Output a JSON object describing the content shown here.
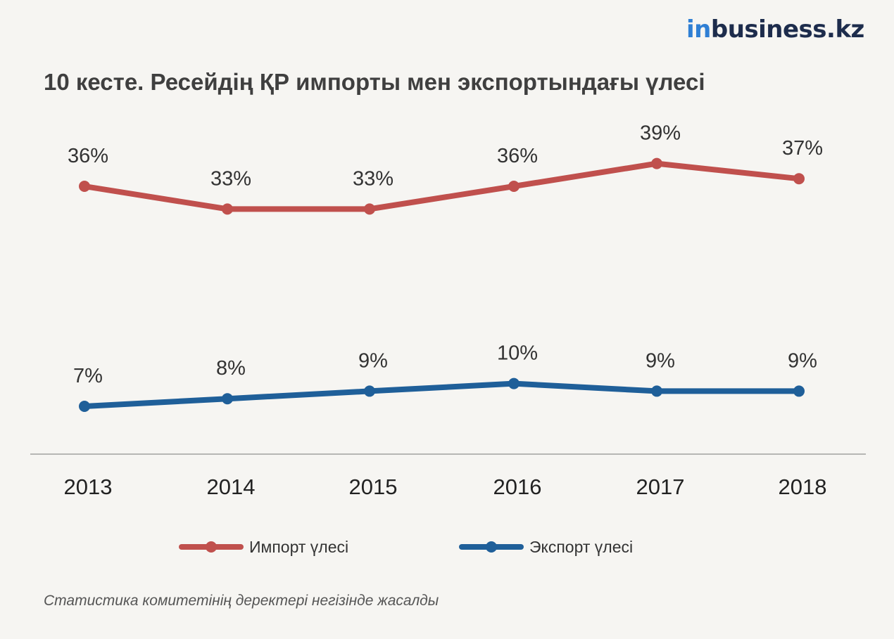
{
  "logo": {
    "prefix": "in",
    "rest": "business.kz"
  },
  "title": "10 кесте. Ресейдің ҚР импорты мен экспортындағы үлесі",
  "source": "Статистика комитетінің деректері негізінде жасалды",
  "chart_data": {
    "type": "line",
    "title": "10 кесте. Ресейдің ҚР импорты мен экспортындағы үлесі",
    "categories": [
      "2013",
      "2014",
      "2015",
      "2016",
      "2017",
      "2018"
    ],
    "value_format": "{v}%",
    "series": [
      {
        "name": "Импорт үлесі",
        "values": [
          36,
          33,
          33,
          36,
          39,
          37
        ],
        "color": "#c0504d"
      },
      {
        "name": "Экспорт үлесі",
        "values": [
          7,
          8,
          9,
          10,
          9,
          9
        ],
        "color": "#1f5f99"
      }
    ],
    "grid": false,
    "legend": "bottom-center"
  }
}
